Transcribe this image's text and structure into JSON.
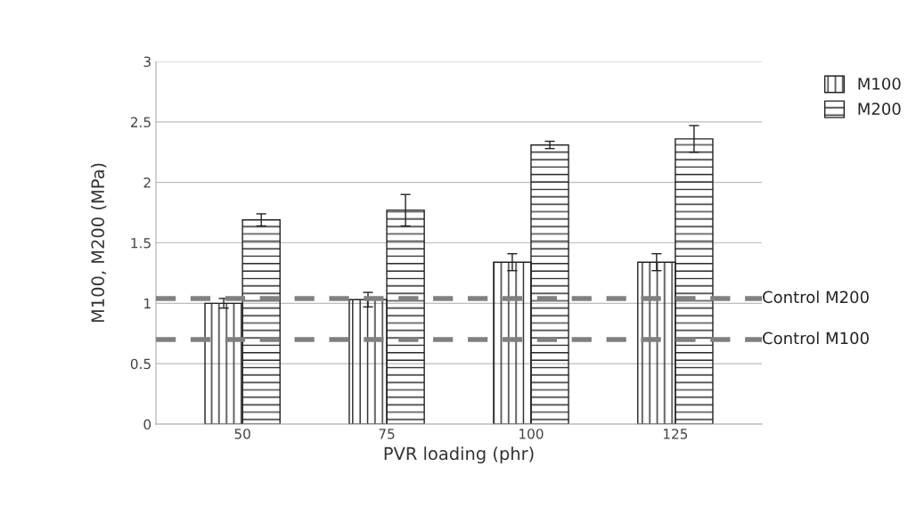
{
  "chart_data": {
    "type": "bar",
    "xlabel": "PVR loading (phr)",
    "ylabel": "M100, M200 (MPa)",
    "categories": [
      "50",
      "75",
      "100",
      "125"
    ],
    "series": [
      {
        "name": "M100",
        "color": "#222222",
        "values": [
          1.0,
          1.03,
          1.34,
          1.34
        ],
        "errors": [
          0.04,
          0.06,
          0.07,
          0.07
        ]
      },
      {
        "name": "M200",
        "color": "#222222",
        "values": [
          1.69,
          1.77,
          2.31,
          2.36
        ],
        "errors": [
          0.05,
          0.13,
          0.03,
          0.11
        ]
      }
    ],
    "ylim": [
      0,
      3
    ],
    "yticks": [
      0,
      0.5,
      1,
      1.5,
      2,
      2.5,
      3
    ],
    "grid": "y",
    "legend": "top right",
    "ref_lines": [
      {
        "axis": "y",
        "value": 1.04,
        "label": "Control M200",
        "color": "#808080",
        "line_style": "dashed"
      },
      {
        "axis": "y",
        "value": 0.7,
        "label": "Control M100",
        "color": "#808080",
        "line_style": "dashed"
      }
    ]
  }
}
